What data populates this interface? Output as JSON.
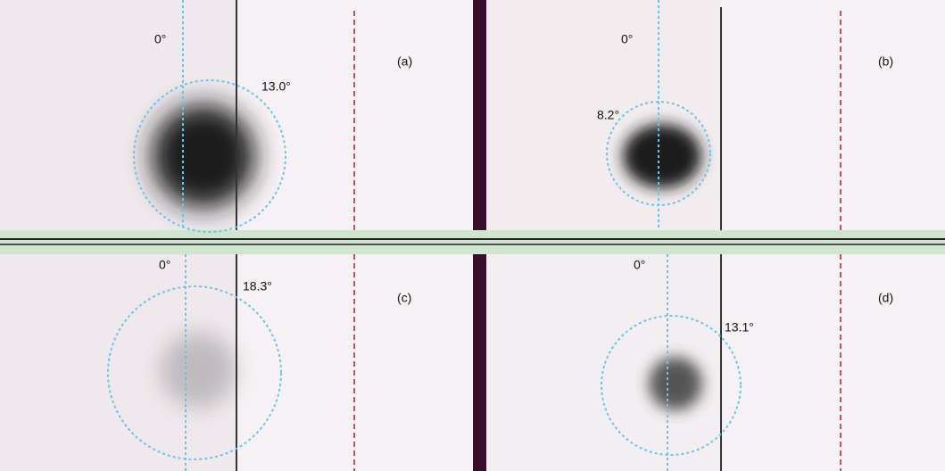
{
  "panels": [
    {
      "label": "(a)",
      "zero_label": "0°",
      "angle_label": "13.0°"
    },
    {
      "label": "(b)",
      "zero_label": "0°",
      "angle_label": "8.2°"
    },
    {
      "label": "(c)",
      "zero_label": "0°",
      "angle_label": "18.3°"
    },
    {
      "label": "(d)",
      "zero_label": "0°",
      "angle_label": "13.1°"
    }
  ]
}
